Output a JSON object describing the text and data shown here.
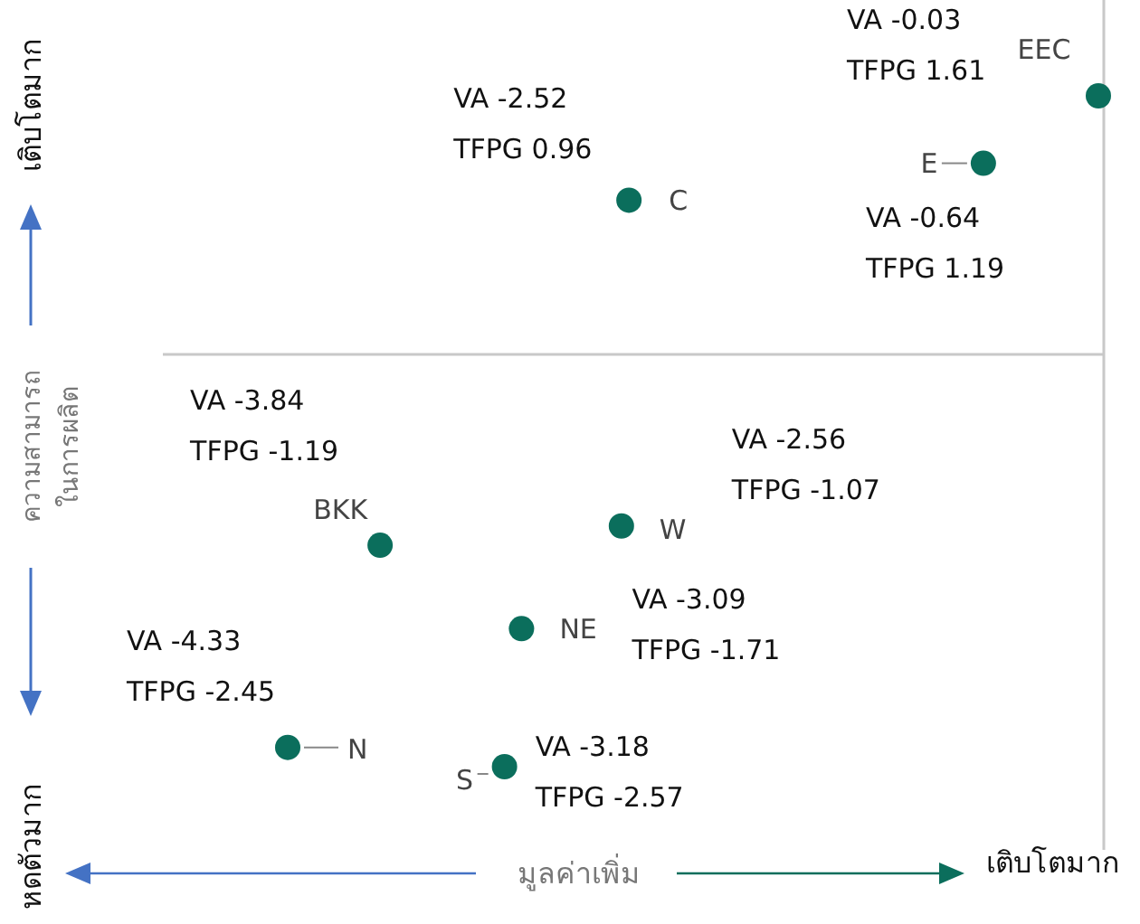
{
  "chart_data": {
    "type": "other",
    "xlabel": "มูลค่าเพิ่ม",
    "ylabel": "ความสามารถ\nในการผลิต",
    "categories": [
      "EEC",
      "E",
      "C",
      "BKK",
      "W",
      "NE",
      "N",
      "S"
    ],
    "series": [
      {
        "color": "#0b6e5c",
        "values": [
          -0.03,
          -0.64,
          -2.52,
          -3.84,
          -2.56,
          -3.09,
          -4.33,
          -3.18
        ],
        "value_labels": [
          "VA -0.03",
          "VA -0.64",
          "VA -2.52",
          "VA -3.84",
          "VA -2.56",
          "VA -3.09",
          "VA -4.33",
          "VA -3.18"
        ]
      },
      {
        "values": [
          1.61,
          1.19,
          0.96,
          -1.19,
          -1.07,
          -1.71,
          -2.45,
          -2.57
        ],
        "value_labels": [
          "TFPG 1.61",
          "TFPG 1.19",
          "TFPG 0.96",
          "TFPG -1.19",
          "TFPG -1.07",
          "TFPG -1.71",
          "TFPG -2.45",
          "TFPG -2.57"
        ]
      }
    ],
    "annotations": [
      "เติบโตมาก",
      "หดตัวมาก",
      "เติบโตมาก"
    ]
  }
}
